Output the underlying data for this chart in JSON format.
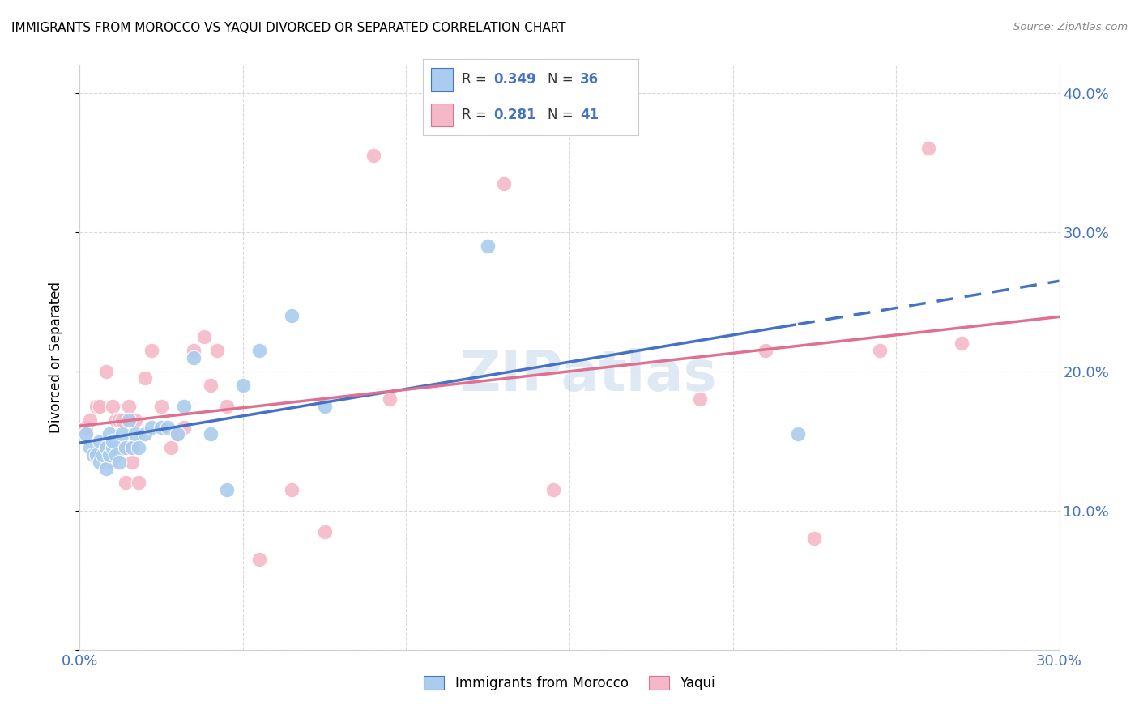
{
  "title": "IMMIGRANTS FROM MOROCCO VS YAQUI DIVORCED OR SEPARATED CORRELATION CHART",
  "source": "Source: ZipAtlas.com",
  "ylabel": "Divorced or Separated",
  "legend_label1": "Immigrants from Morocco",
  "legend_label2": "Yaqui",
  "legend_r1": "0.349",
  "legend_n1": "36",
  "legend_r2": "0.281",
  "legend_n2": "41",
  "xmin": 0.0,
  "xmax": 0.3,
  "ymin": 0.0,
  "ymax": 0.42,
  "xtick_vals": [
    0.0,
    0.05,
    0.1,
    0.15,
    0.2,
    0.25,
    0.3
  ],
  "ytick_vals": [
    0.0,
    0.1,
    0.2,
    0.3,
    0.4
  ],
  "color_blue": "#aaccee",
  "color_pink": "#f5b8c8",
  "line_blue": "#4472c4",
  "line_pink": "#e07090",
  "watermark": "ZIPatlas",
  "blue_x": [
    0.002,
    0.003,
    0.004,
    0.005,
    0.006,
    0.006,
    0.007,
    0.008,
    0.008,
    0.009,
    0.009,
    0.01,
    0.01,
    0.011,
    0.012,
    0.013,
    0.014,
    0.015,
    0.016,
    0.017,
    0.018,
    0.02,
    0.022,
    0.025,
    0.027,
    0.03,
    0.032,
    0.035,
    0.04,
    0.045,
    0.05,
    0.055,
    0.065,
    0.075,
    0.125,
    0.22
  ],
  "blue_y": [
    0.155,
    0.145,
    0.14,
    0.14,
    0.135,
    0.15,
    0.14,
    0.145,
    0.13,
    0.14,
    0.155,
    0.145,
    0.15,
    0.14,
    0.135,
    0.155,
    0.145,
    0.165,
    0.145,
    0.155,
    0.145,
    0.155,
    0.16,
    0.16,
    0.16,
    0.155,
    0.175,
    0.21,
    0.155,
    0.115,
    0.19,
    0.215,
    0.24,
    0.175,
    0.29,
    0.155
  ],
  "pink_x": [
    0.002,
    0.003,
    0.005,
    0.006,
    0.007,
    0.008,
    0.009,
    0.01,
    0.011,
    0.012,
    0.013,
    0.013,
    0.014,
    0.015,
    0.016,
    0.017,
    0.018,
    0.02,
    0.022,
    0.025,
    0.028,
    0.03,
    0.032,
    0.035,
    0.038,
    0.04,
    0.042,
    0.045,
    0.055,
    0.065,
    0.075,
    0.09,
    0.095,
    0.13,
    0.145,
    0.19,
    0.21,
    0.225,
    0.245,
    0.26,
    0.27
  ],
  "pink_y": [
    0.16,
    0.165,
    0.175,
    0.175,
    0.145,
    0.2,
    0.135,
    0.175,
    0.165,
    0.165,
    0.165,
    0.145,
    0.12,
    0.175,
    0.135,
    0.165,
    0.12,
    0.195,
    0.215,
    0.175,
    0.145,
    0.155,
    0.16,
    0.215,
    0.225,
    0.19,
    0.215,
    0.175,
    0.065,
    0.115,
    0.085,
    0.355,
    0.18,
    0.335,
    0.115,
    0.18,
    0.215,
    0.08,
    0.215,
    0.36,
    0.22
  ],
  "background_color": "#ffffff",
  "grid_color": "#d0d0d0"
}
